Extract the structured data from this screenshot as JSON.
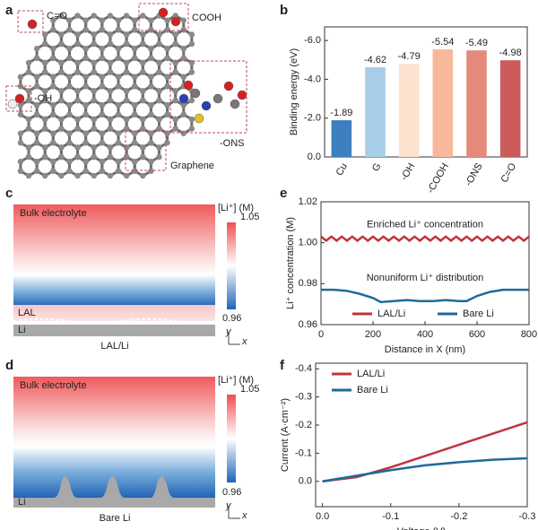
{
  "panel_labels": [
    "a",
    "b",
    "c",
    "d",
    "e",
    "f"
  ],
  "panel_a": {
    "labels": [
      "C=O",
      "COOH",
      "-OH",
      "-ONS",
      "Graphene"
    ]
  },
  "panel_c": {
    "regions": [
      "Bulk electrolyte",
      "LAL",
      "Li"
    ],
    "caption": "LAL/Li",
    "colorbar_title": "[Li⁺] (M)",
    "colorbar": [
      0.96,
      1.05
    ],
    "axes": [
      "y",
      "x"
    ]
  },
  "panel_d": {
    "regions": [
      "Bulk electrolyte",
      "Li"
    ],
    "caption": "Bare Li",
    "colorbar_title": "[Li⁺] (M)",
    "colorbar": [
      0.96,
      1.05
    ],
    "axes": [
      "y",
      "x"
    ]
  },
  "chart_data": [
    {
      "type": "bar",
      "ylabel": "Binding energy (eV)",
      "categories": [
        "Cu",
        "G",
        "-OH",
        "-COOH",
        "-ONS",
        "C=O"
      ],
      "values": [
        -1.89,
        -4.62,
        -4.79,
        -5.54,
        -5.49,
        -4.98
      ],
      "colors": [
        "#3d7fbf",
        "#a8cde9",
        "#fde2cf",
        "#f7b89b",
        "#e38a7b",
        "#cc5b5b"
      ],
      "ylim": [
        0,
        -6.7
      ],
      "yticks": [
        {
          "value": 0,
          "label": "0.0"
        },
        {
          "value": -2,
          "label": "-2.0"
        },
        {
          "value": -4,
          "label": "-4.0"
        },
        {
          "value": -6,
          "label": "-6.0"
        }
      ]
    },
    {
      "type": "line",
      "xlabel": "Distance in X (nm)",
      "ylabel": "Li⁺ concentration (M)",
      "xlim": [
        0,
        800
      ],
      "xticks": [
        0,
        200,
        400,
        600,
        800
      ],
      "ylim": [
        0.96,
        1.02
      ],
      "yticks": [
        0.96,
        0.98,
        {
          "value": 1,
          "label": "1.00"
        },
        1.02
      ],
      "legend": "lower center",
      "annotations": [
        {
          "text": "Enriched Li⁺ concentration",
          "color": "#b23a4a"
        },
        {
          "text": "Nonuniform Li⁺ distribution",
          "color": "#1f6a9a"
        }
      ],
      "series": [
        {
          "name": "LAL/Li",
          "color": "#c0353a",
          "x": [
            0,
            20,
            40,
            60,
            80,
            100,
            120,
            140,
            160,
            180,
            200,
            220,
            240,
            260,
            280,
            300,
            320,
            340,
            360,
            380,
            400,
            420,
            440,
            460,
            480,
            500,
            520,
            540,
            560,
            580,
            600,
            620,
            640,
            660,
            680,
            700,
            720,
            740,
            760,
            780,
            800
          ],
          "values": [
            1.003,
            1.001,
            1.003,
            1.001,
            1.003,
            1.001,
            1.003,
            1.001,
            1.003,
            1.001,
            1.003,
            1.001,
            1.003,
            1.001,
            1.003,
            1.001,
            1.003,
            1.001,
            1.003,
            1.001,
            1.003,
            1.001,
            1.003,
            1.001,
            1.003,
            1.001,
            1.003,
            1.001,
            1.003,
            1.001,
            1.003,
            1.001,
            1.003,
            1.001,
            1.003,
            1.001,
            1.003,
            1.001,
            1.003,
            1.001,
            1.003
          ]
        },
        {
          "name": "Bare Li",
          "color": "#1f6a9a",
          "x": [
            0,
            50,
            100,
            150,
            200,
            230,
            280,
            330,
            380,
            430,
            480,
            530,
            560,
            600,
            650,
            700,
            800
          ],
          "values": [
            0.977,
            0.977,
            0.9765,
            0.975,
            0.973,
            0.971,
            0.9715,
            0.972,
            0.9715,
            0.9715,
            0.972,
            0.9715,
            0.9715,
            0.974,
            0.976,
            0.977,
            0.977
          ]
        }
      ]
    },
    {
      "type": "line",
      "xlabel": "Voltage (V)",
      "ylabel": "Current (A·cm⁻²)",
      "xlim": [
        0.01,
        -0.3
      ],
      "xticks": [
        {
          "value": 0,
          "label": "0.0"
        },
        -0.1,
        -0.2,
        -0.3
      ],
      "ylim": [
        0.09,
        -0.42
      ],
      "yticks": [
        {
          "value": 0,
          "label": "0.0"
        },
        -0.1,
        -0.2,
        -0.3,
        -0.4
      ],
      "legend": "upper left",
      "series": [
        {
          "name": "LAL/Li",
          "color": "#c0353a",
          "x": [
            0,
            -0.05,
            -0.1,
            -0.15,
            -0.2,
            -0.25,
            -0.3
          ],
          "values": [
            0,
            -0.015,
            -0.05,
            -0.09,
            -0.13,
            -0.17,
            -0.21
          ]
        },
        {
          "name": "Bare Li",
          "color": "#1f6a9a",
          "x": [
            0,
            -0.05,
            -0.1,
            -0.15,
            -0.2,
            -0.25,
            -0.3
          ],
          "values": [
            0,
            -0.02,
            -0.04,
            -0.057,
            -0.068,
            -0.077,
            -0.082
          ]
        }
      ]
    }
  ]
}
